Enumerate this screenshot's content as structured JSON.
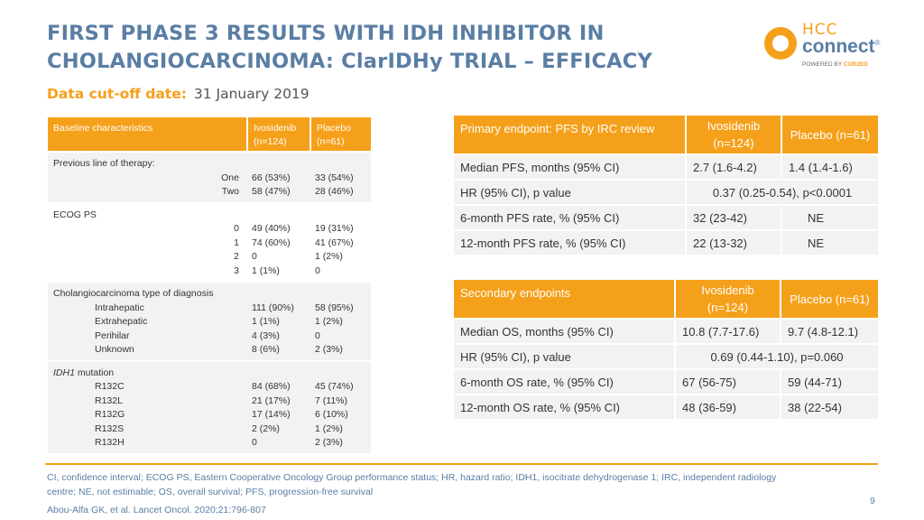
{
  "title_line1": "FIRST PHASE 3 RESULTS WITH IDH INHIBITOR IN",
  "title_line2": "CHOLANGIOCARCINOMA: ClarIDHy TRIAL – EFFICACY",
  "cutoff": {
    "label": "Data cut-off date:",
    "value": "31 January 2019"
  },
  "logo": {
    "hcc": "HCC",
    "connect": "connect",
    "reg": "®",
    "powered": "POWERED BY",
    "cor2ed": "COR2ED"
  },
  "baseline": {
    "headers": [
      "Baseline characteristics",
      "Ivosidenib",
      "(n=124)",
      "Placebo",
      "(n=61)"
    ],
    "prev": {
      "label": "Previous line of therapy:",
      "rows": [
        [
          "One",
          "66 (53%)",
          "33 (54%)"
        ],
        [
          "Two",
          "58 (47%)",
          "28 (46%)"
        ]
      ]
    },
    "ecog": {
      "label": "ECOG PS",
      "rows": [
        [
          "0",
          "49 (40%)",
          "19 (31%)"
        ],
        [
          "1",
          "74 (60%)",
          "41 (67%)"
        ],
        [
          "2",
          "0",
          "1 (2%)"
        ],
        [
          "3",
          "1 (1%)",
          "0"
        ]
      ]
    },
    "diag": {
      "label": "Cholangiocarcinoma type of diagnosis",
      "rows": [
        [
          "Intrahepatic",
          "111 (90%)",
          "58 (95%)"
        ],
        [
          "Extrahepatic",
          "1 (1%)",
          "1 (2%)"
        ],
        [
          "Perihilar",
          "4 (3%)",
          "0"
        ],
        [
          "Unknown",
          "8 (6%)",
          "2 (3%)"
        ]
      ]
    },
    "idh": {
      "label_italic": "IDH1",
      "label_rest": " mutation",
      "rows": [
        [
          "R132C",
          "84 (68%)",
          "45 (74%)"
        ],
        [
          "R132L",
          "21 (17%)",
          "7 (11%)"
        ],
        [
          "R132G",
          "17 (14%)",
          "6 (10%)"
        ],
        [
          "R132S",
          "2 (2%)",
          "1 (2%)"
        ],
        [
          "R132H",
          "0",
          "2 (3%)"
        ]
      ]
    }
  },
  "primary": {
    "headers": [
      "Primary endpoint: PFS by IRC review",
      "Ivosidenib",
      "(n=124)",
      "Placebo (n=61)"
    ],
    "rows": [
      [
        "Median PFS, months (95% CI)",
        "2.7  (1.6-4.2)",
        "1.4  (1.4-1.6)"
      ],
      [
        "HR (95% CI), p value",
        "0.37 (0.25-0.54), p<0.0001"
      ],
      [
        "6-month PFS rate, % (95% CI)",
        "32 (23-42)",
        "NE"
      ],
      [
        "12-month PFS rate, % (95% CI)",
        "22 (13-32)",
        "NE"
      ]
    ]
  },
  "secondary": {
    "headers": [
      "Secondary endpoints",
      "Ivosidenib",
      "(n=124)",
      "Placebo (n=61)"
    ],
    "rows": [
      [
        "Median OS, months (95% CI)",
        "10.8 (7.7-17.6)",
        "9.7 (4.8-12.1)"
      ],
      [
        "HR (95% CI), p value",
        "0.69 (0.44-1.10), p=0.060"
      ],
      [
        "6-month OS rate, % (95% CI)",
        "67 (56-75)",
        "59 (44-71)"
      ],
      [
        "12-month OS rate, % (95% CI)",
        "48 (36-59)",
        "38 (22-54)"
      ]
    ]
  },
  "footnote_line1": "CI, confidence interval; ECOG PS, Eastern Cooperative Oncology Group performance status; HR, hazard ratio; IDH1, isocitrate dehydrogenase 1; IRC, independent radiology",
  "footnote_line2": "centre; NE, not estimable; OS, overall survival; PFS, progression-free survival",
  "reference": "Abou-Alfa GK, et al. Lancet Oncol. 2020;21:796-807",
  "page_number": "9",
  "colors": {
    "accent": "#f5a01a",
    "title": "#5a7ea4",
    "row_bg": "#f2f2f2"
  }
}
